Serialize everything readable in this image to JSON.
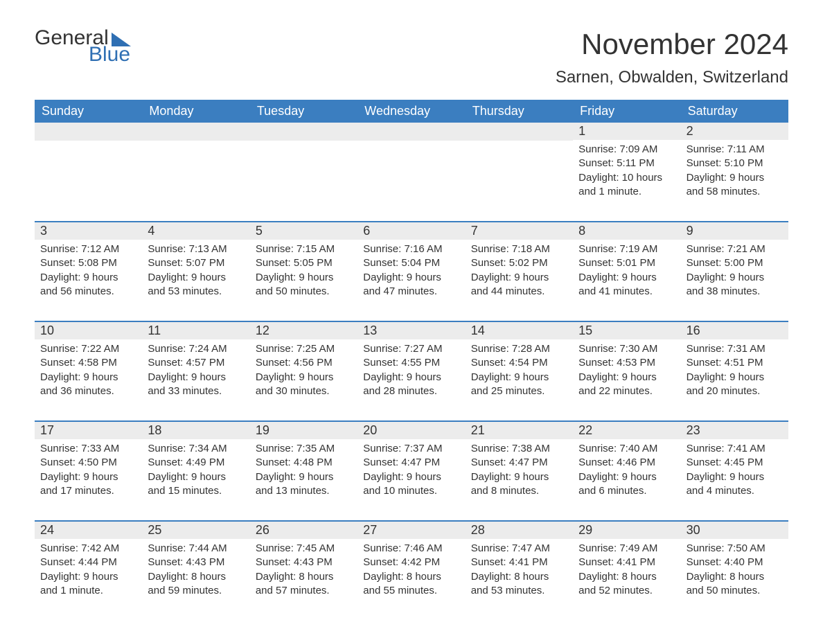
{
  "logo": {
    "general": "General",
    "blue": "Blue"
  },
  "title": "November 2024",
  "location": "Sarnen, Obwalden, Switzerland",
  "colors": {
    "header_bg": "#3b7ec0",
    "header_text": "#ffffff",
    "accent": "#2f6fb3",
    "daynum_bg": "#ececec",
    "body_text": "#333333",
    "page_bg": "#ffffff"
  },
  "typography": {
    "title_fontsize": 42,
    "location_fontsize": 24,
    "dayheader_fontsize": 18,
    "daynum_fontsize": 18,
    "cell_fontsize": 15,
    "logo_fontsize": 30
  },
  "layout": {
    "columns": 7,
    "rows": 5
  },
  "day_names": [
    "Sunday",
    "Monday",
    "Tuesday",
    "Wednesday",
    "Thursday",
    "Friday",
    "Saturday"
  ],
  "weeks": [
    [
      null,
      null,
      null,
      null,
      null,
      {
        "n": "1",
        "sunrise": "Sunrise: 7:09 AM",
        "sunset": "Sunset: 5:11 PM",
        "daylight": "Daylight: 10 hours and 1 minute."
      },
      {
        "n": "2",
        "sunrise": "Sunrise: 7:11 AM",
        "sunset": "Sunset: 5:10 PM",
        "daylight": "Daylight: 9 hours and 58 minutes."
      }
    ],
    [
      {
        "n": "3",
        "sunrise": "Sunrise: 7:12 AM",
        "sunset": "Sunset: 5:08 PM",
        "daylight": "Daylight: 9 hours and 56 minutes."
      },
      {
        "n": "4",
        "sunrise": "Sunrise: 7:13 AM",
        "sunset": "Sunset: 5:07 PM",
        "daylight": "Daylight: 9 hours and 53 minutes."
      },
      {
        "n": "5",
        "sunrise": "Sunrise: 7:15 AM",
        "sunset": "Sunset: 5:05 PM",
        "daylight": "Daylight: 9 hours and 50 minutes."
      },
      {
        "n": "6",
        "sunrise": "Sunrise: 7:16 AM",
        "sunset": "Sunset: 5:04 PM",
        "daylight": "Daylight: 9 hours and 47 minutes."
      },
      {
        "n": "7",
        "sunrise": "Sunrise: 7:18 AM",
        "sunset": "Sunset: 5:02 PM",
        "daylight": "Daylight: 9 hours and 44 minutes."
      },
      {
        "n": "8",
        "sunrise": "Sunrise: 7:19 AM",
        "sunset": "Sunset: 5:01 PM",
        "daylight": "Daylight: 9 hours and 41 minutes."
      },
      {
        "n": "9",
        "sunrise": "Sunrise: 7:21 AM",
        "sunset": "Sunset: 5:00 PM",
        "daylight": "Daylight: 9 hours and 38 minutes."
      }
    ],
    [
      {
        "n": "10",
        "sunrise": "Sunrise: 7:22 AM",
        "sunset": "Sunset: 4:58 PM",
        "daylight": "Daylight: 9 hours and 36 minutes."
      },
      {
        "n": "11",
        "sunrise": "Sunrise: 7:24 AM",
        "sunset": "Sunset: 4:57 PM",
        "daylight": "Daylight: 9 hours and 33 minutes."
      },
      {
        "n": "12",
        "sunrise": "Sunrise: 7:25 AM",
        "sunset": "Sunset: 4:56 PM",
        "daylight": "Daylight: 9 hours and 30 minutes."
      },
      {
        "n": "13",
        "sunrise": "Sunrise: 7:27 AM",
        "sunset": "Sunset: 4:55 PM",
        "daylight": "Daylight: 9 hours and 28 minutes."
      },
      {
        "n": "14",
        "sunrise": "Sunrise: 7:28 AM",
        "sunset": "Sunset: 4:54 PM",
        "daylight": "Daylight: 9 hours and 25 minutes."
      },
      {
        "n": "15",
        "sunrise": "Sunrise: 7:30 AM",
        "sunset": "Sunset: 4:53 PM",
        "daylight": "Daylight: 9 hours and 22 minutes."
      },
      {
        "n": "16",
        "sunrise": "Sunrise: 7:31 AM",
        "sunset": "Sunset: 4:51 PM",
        "daylight": "Daylight: 9 hours and 20 minutes."
      }
    ],
    [
      {
        "n": "17",
        "sunrise": "Sunrise: 7:33 AM",
        "sunset": "Sunset: 4:50 PM",
        "daylight": "Daylight: 9 hours and 17 minutes."
      },
      {
        "n": "18",
        "sunrise": "Sunrise: 7:34 AM",
        "sunset": "Sunset: 4:49 PM",
        "daylight": "Daylight: 9 hours and 15 minutes."
      },
      {
        "n": "19",
        "sunrise": "Sunrise: 7:35 AM",
        "sunset": "Sunset: 4:48 PM",
        "daylight": "Daylight: 9 hours and 13 minutes."
      },
      {
        "n": "20",
        "sunrise": "Sunrise: 7:37 AM",
        "sunset": "Sunset: 4:47 PM",
        "daylight": "Daylight: 9 hours and 10 minutes."
      },
      {
        "n": "21",
        "sunrise": "Sunrise: 7:38 AM",
        "sunset": "Sunset: 4:47 PM",
        "daylight": "Daylight: 9 hours and 8 minutes."
      },
      {
        "n": "22",
        "sunrise": "Sunrise: 7:40 AM",
        "sunset": "Sunset: 4:46 PM",
        "daylight": "Daylight: 9 hours and 6 minutes."
      },
      {
        "n": "23",
        "sunrise": "Sunrise: 7:41 AM",
        "sunset": "Sunset: 4:45 PM",
        "daylight": "Daylight: 9 hours and 4 minutes."
      }
    ],
    [
      {
        "n": "24",
        "sunrise": "Sunrise: 7:42 AM",
        "sunset": "Sunset: 4:44 PM",
        "daylight": "Daylight: 9 hours and 1 minute."
      },
      {
        "n": "25",
        "sunrise": "Sunrise: 7:44 AM",
        "sunset": "Sunset: 4:43 PM",
        "daylight": "Daylight: 8 hours and 59 minutes."
      },
      {
        "n": "26",
        "sunrise": "Sunrise: 7:45 AM",
        "sunset": "Sunset: 4:43 PM",
        "daylight": "Daylight: 8 hours and 57 minutes."
      },
      {
        "n": "27",
        "sunrise": "Sunrise: 7:46 AM",
        "sunset": "Sunset: 4:42 PM",
        "daylight": "Daylight: 8 hours and 55 minutes."
      },
      {
        "n": "28",
        "sunrise": "Sunrise: 7:47 AM",
        "sunset": "Sunset: 4:41 PM",
        "daylight": "Daylight: 8 hours and 53 minutes."
      },
      {
        "n": "29",
        "sunrise": "Sunrise: 7:49 AM",
        "sunset": "Sunset: 4:41 PM",
        "daylight": "Daylight: 8 hours and 52 minutes."
      },
      {
        "n": "30",
        "sunrise": "Sunrise: 7:50 AM",
        "sunset": "Sunset: 4:40 PM",
        "daylight": "Daylight: 8 hours and 50 minutes."
      }
    ]
  ]
}
